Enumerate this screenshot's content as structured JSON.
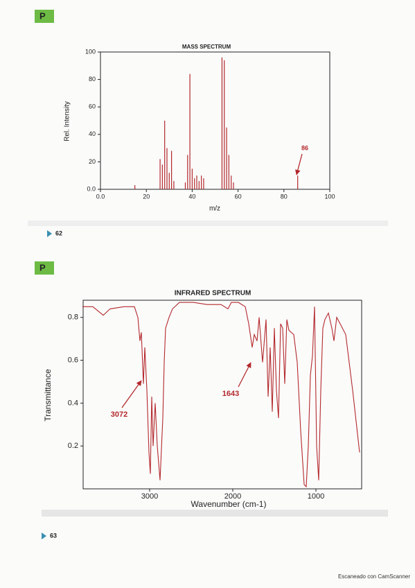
{
  "badges": [
    "P",
    "P"
  ],
  "page_numbers": [
    "62",
    "63"
  ],
  "footer": "Escaneado con CamScanner",
  "chart_data": [
    {
      "type": "bar",
      "title": "MASS SPECTRUM",
      "xlabel": "m/z",
      "ylabel": "Rel. Intensity",
      "x": [
        15,
        26,
        27,
        28,
        29,
        30,
        31,
        32,
        37,
        38,
        39,
        40,
        41,
        42,
        43,
        44,
        45,
        53,
        54,
        55,
        56,
        57,
        58,
        86
      ],
      "values": [
        3,
        22,
        18,
        50,
        30,
        12,
        28,
        6,
        5,
        25,
        84,
        15,
        8,
        10,
        6,
        10,
        8,
        96,
        94,
        45,
        25,
        10,
        5,
        10
      ],
      "color": "#b3282d",
      "xlim": [
        0,
        100
      ],
      "ylim": [
        0,
        100
      ],
      "xticks": [
        {
          "value": 0,
          "label": "0.0"
        },
        20,
        40,
        60,
        80,
        100
      ],
      "yticks": [
        {
          "value": 0,
          "label": "0.0"
        },
        20,
        40,
        60,
        80,
        100
      ],
      "annotations": [
        {
          "text": "86"
        }
      ]
    },
    {
      "type": "line",
      "title": "INFRARED SPECTRUM",
      "xlabel": "Wavenumber (cm-1)",
      "ylabel": "Transmittance",
      "x": [
        3808,
        3683,
        3558,
        3475,
        3308,
        3183,
        3142,
        3117,
        3100,
        3075,
        3058,
        3033,
        3008,
        2992,
        2975,
        2958,
        2933,
        2908,
        2875,
        2842,
        2825,
        2808,
        2767,
        2725,
        2642,
        2475,
        2308,
        2142,
        2058,
        2017,
        1933,
        1850,
        1808,
        1767,
        1742,
        1708,
        1683,
        1642,
        1600,
        1575,
        1550,
        1525,
        1500,
        1475,
        1450,
        1425,
        1400,
        1375,
        1350,
        1325,
        1267,
        1225,
        1183,
        1142,
        1117,
        1092,
        1067,
        1042,
        1017,
        992,
        967,
        942,
        917,
        892,
        850,
        808,
        783,
        750,
        708,
        642,
        558,
        475
      ],
      "values": [
        0.85,
        0.85,
        0.81,
        0.84,
        0.85,
        0.85,
        0.8,
        0.69,
        0.73,
        0.49,
        0.66,
        0.46,
        0.17,
        0.07,
        0.43,
        0.2,
        0.4,
        0.2,
        0.04,
        0.33,
        0.59,
        0.75,
        0.8,
        0.84,
        0.87,
        0.87,
        0.86,
        0.86,
        0.84,
        0.87,
        0.87,
        0.85,
        0.77,
        0.66,
        0.72,
        0.69,
        0.8,
        0.59,
        0.79,
        0.43,
        0.66,
        0.36,
        0.75,
        0.46,
        0.33,
        0.77,
        0.75,
        0.49,
        0.79,
        0.74,
        0.72,
        0.59,
        0.27,
        0.02,
        0.01,
        0.2,
        0.53,
        0.62,
        0.85,
        0.2,
        0.04,
        0.46,
        0.75,
        0.79,
        0.82,
        0.75,
        0.69,
        0.8,
        0.77,
        0.72,
        0.46,
        0.17
      ],
      "color": "#b3282d",
      "xlim": [
        3800,
        450
      ],
      "ylim": [
        0,
        0.88
      ],
      "xticks": [
        3000,
        2000,
        1000
      ],
      "yticks": [
        0.2,
        0.4,
        0.6,
        0.8
      ],
      "annotations": [
        {
          "text": "3072"
        },
        {
          "text": "1643"
        }
      ]
    }
  ]
}
